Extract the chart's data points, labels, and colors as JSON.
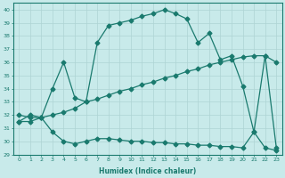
{
  "line1_x": [
    0,
    1,
    2,
    3,
    4,
    5,
    6,
    7,
    8,
    9,
    10,
    11,
    12,
    13,
    14,
    15,
    16,
    17,
    18,
    19,
    20,
    21,
    22,
    23
  ],
  "line1_y": [
    32.0,
    31.8,
    31.8,
    34.0,
    36.0,
    33.3,
    33.0,
    37.5,
    38.8,
    39.0,
    39.2,
    39.5,
    39.7,
    40.0,
    39.7,
    39.3,
    37.5,
    38.2,
    36.2,
    36.5,
    34.2,
    30.7,
    36.5,
    29.5
  ],
  "line2_x": [
    0,
    1,
    2,
    3,
    4,
    5,
    6,
    7,
    8,
    9,
    10,
    11,
    12,
    13,
    14,
    15,
    16,
    17,
    18,
    19,
    20,
    21,
    22,
    23
  ],
  "line2_y": [
    31.5,
    32.0,
    31.8,
    32.0,
    32.2,
    32.5,
    33.0,
    33.2,
    33.5,
    33.8,
    34.0,
    34.3,
    34.5,
    34.8,
    35.0,
    35.3,
    35.5,
    35.8,
    36.0,
    36.2,
    36.4,
    36.5,
    36.5,
    36.0
  ],
  "line3_x": [
    0,
    1,
    2,
    3,
    4,
    5,
    6,
    7,
    8,
    9,
    10,
    11,
    12,
    13,
    14,
    15,
    16,
    17,
    18,
    19,
    20,
    21,
    22,
    23
  ],
  "line3_y": [
    31.5,
    31.5,
    31.8,
    30.7,
    30.0,
    29.8,
    30.0,
    30.2,
    30.2,
    30.1,
    30.0,
    30.0,
    29.9,
    29.9,
    29.8,
    29.8,
    29.7,
    29.7,
    29.6,
    29.6,
    29.5,
    30.7,
    29.5,
    29.3
  ],
  "line_color": "#1a7a6e",
  "bg_color": "#c8eaea",
  "grid_color": "#aed4d4",
  "xlabel": "Humidex (Indice chaleur)",
  "xlim": [
    -0.5,
    23.5
  ],
  "ylim": [
    29,
    40.5
  ],
  "yticks": [
    29,
    30,
    31,
    32,
    33,
    34,
    35,
    36,
    37,
    38,
    39,
    40
  ],
  "xticks": [
    0,
    1,
    2,
    3,
    4,
    5,
    6,
    7,
    8,
    9,
    10,
    11,
    12,
    13,
    14,
    15,
    16,
    17,
    18,
    19,
    20,
    21,
    22,
    23
  ],
  "markersize": 2.5,
  "linewidth": 0.9
}
